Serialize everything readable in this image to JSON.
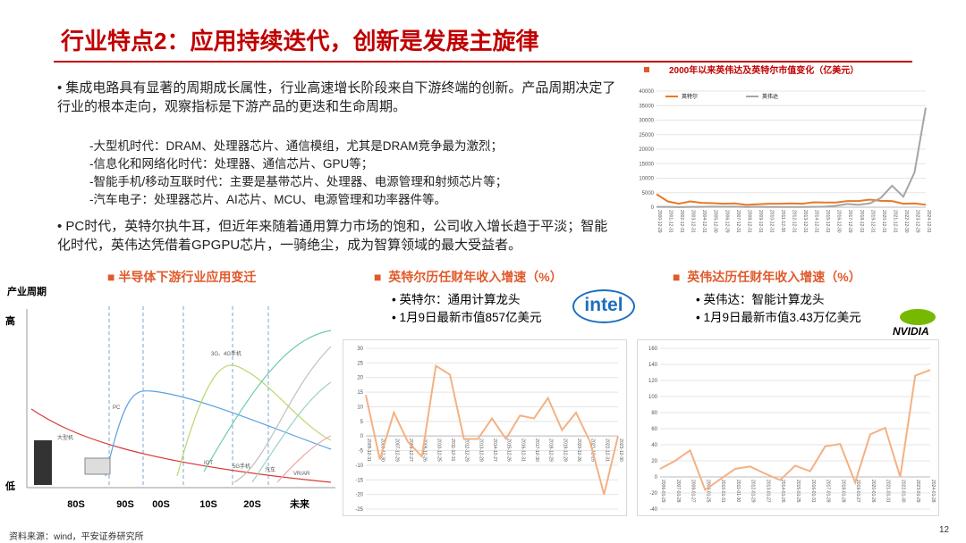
{
  "title": "行业特点2：应用持续迭代，创新是发展主旋律",
  "intro": "集成电路具有显著的周期成长属性，行业高速增长阶段来自下游终端的创新。产品周期决定了行业的根本走向，观察指标是下游产品的更迭和生命周期。",
  "eras": [
    "-大型机时代：DRAM、处理器芯片、通信模组，尤其是DRAM竞争最为激烈；",
    "-信息化和网络化时代：处理器、通信芯片、GPU等；",
    "-智能手机/移动互联时代：主要是基带芯片、处理器、电源管理和射频芯片等；",
    "-汽车电子：处理器芯片、AI芯片、MCU、电源管理和功率器件等。"
  ],
  "conclusion": "PC时代，英特尔执牛耳，但近年来随着通用算力市场的饱和，公司收入增长趋于平淡；智能化时代，英伟达凭借着GPGPU芯片，一骑绝尘，成为智算领域的最大受益者。",
  "diagram": {
    "title": "半导体下游行业应用变迁",
    "y_axis": "产业周期",
    "high": "高",
    "low": "低",
    "periods": [
      "80S",
      "90S",
      "00S",
      "10S",
      "20S",
      "未来"
    ],
    "curves": [
      "大型机",
      "PC",
      "3G、4G手机",
      "IOT",
      "5G手机",
      "汽车",
      "VR/AR"
    ]
  },
  "intel": {
    "heading": "英特尔历任财年收入增速（%）",
    "points": [
      "英特尔：通用计算龙头",
      "1月9日最新市值857亿美元"
    ],
    "logo": "intel"
  },
  "nvidia": {
    "heading": "英伟达历任财年收入增速（%）",
    "points": [
      "英伟达：智能计算龙头",
      "1月9日最新市值3.43万亿美元"
    ],
    "logo": "NVIDIA"
  },
  "source": "资料来源：wind，平安证券研究所",
  "page": "12",
  "chart_data": [
    {
      "type": "line",
      "title": "2000年以来英伟达及英特尔市值变化（亿美元）",
      "categories": [
        "2000-12-29",
        "2001-12-31",
        "2002-12-31",
        "2003-12-31",
        "2004-12-31",
        "2005-12-30",
        "2006-12-29",
        "2007-12-31",
        "2008-12-31",
        "2009-12-31",
        "2010-12-31",
        "2011-12-30",
        "2012-12-31",
        "2013-12-31",
        "2014-12-31",
        "2015-12-31",
        "2016-12-30",
        "2017-12-29",
        "2018-12-31",
        "2019-12-31",
        "2020-12-31",
        "2021-12-31",
        "2022-12-30",
        "2023-12-29",
        "2024-12-31"
      ],
      "series": [
        {
          "name": "英特尔",
          "color": "#e8792a",
          "values": [
            4500,
            2000,
            1200,
            2000,
            1500,
            1400,
            1200,
            1300,
            800,
            1000,
            1200,
            1200,
            1300,
            1200,
            1700,
            1600,
            1600,
            2100,
            2100,
            2600,
            2200,
            2100,
            1200,
            1300,
            857
          ]
        },
        {
          "name": "英伟达",
          "color": "#a5a5a5",
          "values": [
            100,
            120,
            40,
            100,
            130,
            200,
            150,
            200,
            70,
            100,
            90,
            80,
            80,
            90,
            110,
            180,
            500,
            1100,
            800,
            1300,
            3200,
            7400,
            3600,
            12000,
            34300
          ]
        }
      ],
      "ylim": [
        0,
        40000
      ],
      "yticks": [
        0,
        5000,
        10000,
        15000,
        20000,
        25000,
        30000,
        35000,
        40000
      ],
      "legend": "top-left"
    },
    {
      "type": "line",
      "categories": [
        "2005-12-31",
        "2006-12-30",
        "2007-12-29",
        "2008-12-27",
        "2009-12-26",
        "2010-12-25",
        "2011-12-31",
        "2012-12-29",
        "2013-12-28",
        "2014-12-27",
        "2015-12-26",
        "2016-12-31",
        "2017-12-30",
        "2018-12-29",
        "2019-12-28",
        "2020-12-26",
        "2021-12-25",
        "2022-12-31",
        "2023-12-30"
      ],
      "series": [
        {
          "name": "英特尔",
          "color": "#f4b183",
          "values": [
            14,
            -8,
            8,
            -2,
            -7,
            24,
            21,
            -1,
            -1,
            6,
            -1,
            7,
            6,
            13,
            2,
            8,
            -2,
            -20,
            0
          ]
        }
      ],
      "ylim": [
        -25,
        30
      ],
      "yticks": [
        -25,
        -20,
        -15,
        -10,
        -5,
        0,
        5,
        10,
        15,
        20,
        25,
        30
      ]
    },
    {
      "type": "line",
      "categories": [
        "2006-01-29",
        "2007-01-28",
        "2008-01-27",
        "2009-01-25",
        "2010-01-31",
        "2011-01-30",
        "2012-01-29",
        "2013-01-27",
        "2014-01-26",
        "2015-01-25",
        "2016-01-31",
        "2017-01-29",
        "2018-01-28",
        "2019-01-27",
        "2020-01-26",
        "2021-01-31",
        "2022-01-30",
        "2023-01-29",
        "2024-01-28"
      ],
      "series": [
        {
          "name": "英伟达",
          "color": "#f4b183",
          "values": [
            10,
            20,
            33,
            -16,
            -3,
            10,
            13,
            4,
            -4,
            14,
            7,
            38,
            41,
            -7,
            53,
            61,
            0,
            126,
            133
          ]
        }
      ],
      "ylim": [
        -40,
        160
      ],
      "yticks": [
        -40,
        -20,
        0,
        20,
        40,
        60,
        80,
        100,
        120,
        140,
        160
      ]
    }
  ]
}
